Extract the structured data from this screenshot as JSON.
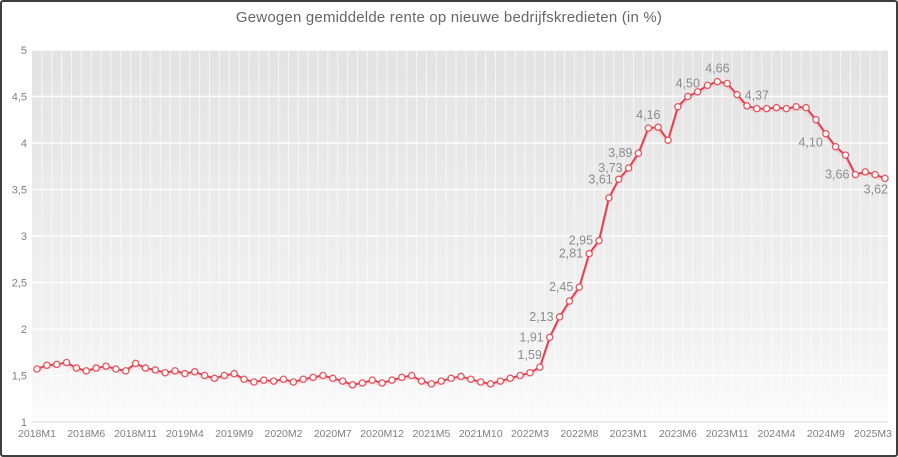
{
  "chart_data": {
    "type": "line",
    "title": "Gewogen gemiddelde rente op nieuwe bedrijfskredieten (in %)",
    "xlabel": "",
    "ylabel": "",
    "ylim": [
      1,
      5
    ],
    "y_tick_step": 0.5,
    "grid": "white gridlines on gray gradient plot area, vertical line per month",
    "legend_position": "none",
    "decimal_separator": ",",
    "x": [
      "2018M1",
      "2018M2",
      "2018M3",
      "2018M4",
      "2018M5",
      "2018M6",
      "2018M7",
      "2018M8",
      "2018M9",
      "2018M10",
      "2018M11",
      "2018M12",
      "2019M1",
      "2019M2",
      "2019M3",
      "2019M4",
      "2019M5",
      "2019M6",
      "2019M7",
      "2019M8",
      "2019M9",
      "2019M10",
      "2019M11",
      "2019M12",
      "2020M1",
      "2020M2",
      "2020M3",
      "2020M4",
      "2020M5",
      "2020M6",
      "2020M7",
      "2020M8",
      "2020M9",
      "2020M10",
      "2020M11",
      "2020M12",
      "2021M1",
      "2021M2",
      "2021M3",
      "2021M4",
      "2021M5",
      "2021M6",
      "2021M7",
      "2021M8",
      "2021M9",
      "2021M10",
      "2021M11",
      "2021M12",
      "2022M1",
      "2022M2",
      "2022M3",
      "2022M4",
      "2022M5",
      "2022M6",
      "2022M7",
      "2022M8",
      "2022M9",
      "2022M10",
      "2022M11",
      "2022M12",
      "2023M1",
      "2023M2",
      "2023M3",
      "2023M4",
      "2023M5",
      "2023M6",
      "2023M7",
      "2023M8",
      "2023M9",
      "2023M10",
      "2023M11",
      "2023M12",
      "2024M1",
      "2024M2",
      "2024M3",
      "2024M4",
      "2024M5",
      "2024M6",
      "2024M7",
      "2024M8",
      "2024M9",
      "2024M10",
      "2024M11",
      "2024M12",
      "2025M1",
      "2025M2",
      "2025M3"
    ],
    "series": [
      {
        "name": "Gewogen gemiddelde rente",
        "values": [
          1.57,
          1.61,
          1.62,
          1.64,
          1.58,
          1.55,
          1.58,
          1.6,
          1.57,
          1.55,
          1.63,
          1.58,
          1.56,
          1.53,
          1.55,
          1.52,
          1.54,
          1.5,
          1.47,
          1.5,
          1.52,
          1.46,
          1.43,
          1.45,
          1.44,
          1.46,
          1.43,
          1.46,
          1.48,
          1.5,
          1.47,
          1.44,
          1.4,
          1.42,
          1.45,
          1.42,
          1.45,
          1.48,
          1.5,
          1.44,
          1.41,
          1.44,
          1.47,
          1.49,
          1.46,
          1.43,
          1.41,
          1.44,
          1.47,
          1.5,
          1.53,
          1.59,
          1.91,
          2.13,
          2.3,
          2.45,
          2.81,
          2.95,
          3.41,
          3.61,
          3.73,
          3.89,
          4.16,
          4.17,
          4.03,
          4.39,
          4.5,
          4.55,
          4.62,
          4.66,
          4.64,
          4.52,
          4.4,
          4.37,
          4.37,
          4.38,
          4.37,
          4.39,
          4.38,
          4.25,
          4.1,
          3.96,
          3.87,
          3.66,
          3.69,
          3.66,
          3.62
        ]
      }
    ],
    "x_tick_labels": [
      "2018M1",
      "2018M6",
      "2018M11",
      "2019M4",
      "2019M9",
      "2020M2",
      "2020M7",
      "2020M12",
      "2021M5",
      "2021M10",
      "2022M3",
      "2022M8",
      "2023M1",
      "2023M6",
      "2023M11",
      "2024M4",
      "2024M9",
      "2025M3"
    ],
    "y_tick_labels": [
      "5",
      "4,5",
      "4",
      "3,5",
      "3",
      "2,5",
      "2",
      "1,5",
      "1"
    ],
    "y_tick_values": [
      5,
      4.5,
      4,
      3.5,
      3,
      2.5,
      2,
      1.5,
      1
    ],
    "annotations": [
      {
        "month": "2022M4",
        "text": "1,59",
        "placement": "above-left"
      },
      {
        "month": "2022M5",
        "text": "1,91",
        "placement": "left"
      },
      {
        "month": "2022M6",
        "text": "2,13",
        "placement": "left"
      },
      {
        "month": "2022M8",
        "text": "2,45",
        "placement": "left"
      },
      {
        "month": "2022M9",
        "text": "2,81",
        "placement": "left"
      },
      {
        "month": "2022M10",
        "text": "2,95",
        "placement": "left"
      },
      {
        "month": "2022M12",
        "text": "3,61",
        "placement": "left"
      },
      {
        "month": "2023M1",
        "text": "3,73",
        "placement": "left"
      },
      {
        "month": "2023M2",
        "text": "3,89",
        "placement": "left"
      },
      {
        "month": "2023M3",
        "text": "4,16",
        "placement": "above"
      },
      {
        "month": "2023M7",
        "text": "4,50",
        "placement": "above"
      },
      {
        "month": "2023M10",
        "text": "4,66",
        "placement": "above"
      },
      {
        "month": "2024M2",
        "text": "4,37",
        "placement": "above"
      },
      {
        "month": "2024M9",
        "text": "4,10",
        "placement": "below-left"
      },
      {
        "month": "2024M12",
        "text": "3,66",
        "placement": "left"
      },
      {
        "month": "2025M3",
        "text": "3,62",
        "placement": "below"
      }
    ],
    "colors": {
      "line": "#e0424f",
      "marker_fill": "#fefafa",
      "marker_stroke": "#e25761",
      "data_label": "#8c8c8c",
      "axis_text": "#7f7f7f",
      "title_text": "#666666",
      "plot_bg_top": "#e3e3e3",
      "plot_bg_bottom": "#fcfcfc",
      "gridline": "#ffffff",
      "axis_line": "#d8d8d8",
      "frame_border": "#3f3f3f"
    }
  }
}
